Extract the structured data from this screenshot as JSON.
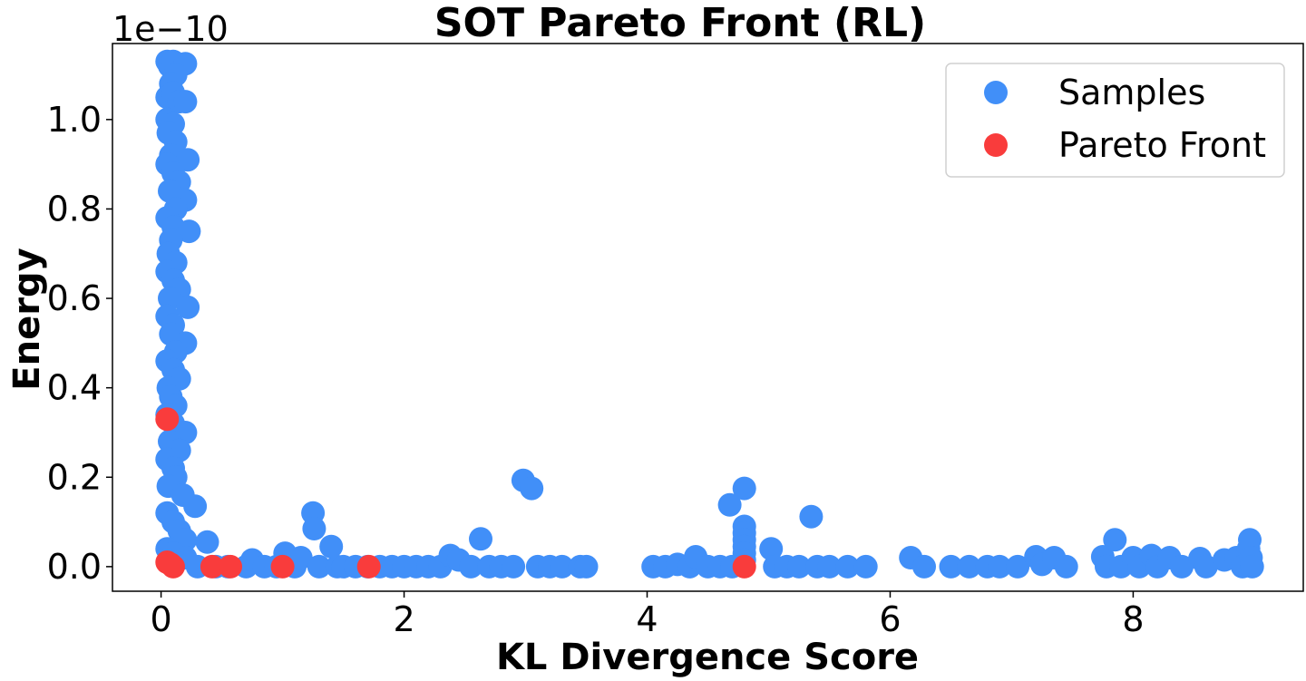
{
  "chart_data": {
    "type": "scatter",
    "title": "SOT Pareto Front (RL)",
    "xlabel": "KL Divergence Score",
    "ylabel": "Energy",
    "y_offset_text": "1e−10",
    "y_scale_note": "y values in units of 1e-10",
    "xlim": [
      -0.4,
      9.4
    ],
    "ylim": [
      -0.055,
      1.17
    ],
    "x_ticks": [
      0,
      2,
      4,
      6,
      8
    ],
    "x_tick_labels": [
      "0",
      "2",
      "4",
      "6",
      "8"
    ],
    "y_ticks": [
      0.0,
      0.2,
      0.4,
      0.6,
      0.8,
      1.0
    ],
    "y_tick_labels": [
      "0.0",
      "0.2",
      "0.4",
      "0.6",
      "0.8",
      "1.0"
    ],
    "grid": false,
    "legend_position": "top-right",
    "legend": [
      "Samples",
      "Pareto Front"
    ],
    "colors": {
      "samples": "#418ff8",
      "pareto": "#f93c3c"
    },
    "series": [
      {
        "name": "Samples",
        "points": [
          [
            0.05,
            1.13
          ],
          [
            0.07,
            1.12
          ],
          [
            0.1,
            1.13
          ],
          [
            0.2,
            1.125
          ],
          [
            0.12,
            1.1
          ],
          [
            0.08,
            1.08
          ],
          [
            0.05,
            1.05
          ],
          [
            0.1,
            1.06
          ],
          [
            0.15,
            1.04
          ],
          [
            0.2,
            1.04
          ],
          [
            0.05,
            1.0
          ],
          [
            0.1,
            0.99
          ],
          [
            0.06,
            0.97
          ],
          [
            0.12,
            0.95
          ],
          [
            0.08,
            0.92
          ],
          [
            0.22,
            0.91
          ],
          [
            0.05,
            0.9
          ],
          [
            0.1,
            0.88
          ],
          [
            0.15,
            0.86
          ],
          [
            0.07,
            0.84
          ],
          [
            0.2,
            0.82
          ],
          [
            0.12,
            0.8
          ],
          [
            0.05,
            0.78
          ],
          [
            0.1,
            0.76
          ],
          [
            0.23,
            0.75
          ],
          [
            0.08,
            0.73
          ],
          [
            0.06,
            0.7
          ],
          [
            0.12,
            0.68
          ],
          [
            0.05,
            0.66
          ],
          [
            0.1,
            0.64
          ],
          [
            0.15,
            0.62
          ],
          [
            0.07,
            0.6
          ],
          [
            0.22,
            0.58
          ],
          [
            0.05,
            0.56
          ],
          [
            0.1,
            0.54
          ],
          [
            0.08,
            0.52
          ],
          [
            0.2,
            0.5
          ],
          [
            0.12,
            0.48
          ],
          [
            0.05,
            0.46
          ],
          [
            0.1,
            0.44
          ],
          [
            0.15,
            0.42
          ],
          [
            0.06,
            0.4
          ],
          [
            0.08,
            0.38
          ],
          [
            0.12,
            0.36
          ],
          [
            0.05,
            0.34
          ],
          [
            0.1,
            0.32
          ],
          [
            0.2,
            0.3
          ],
          [
            0.07,
            0.28
          ],
          [
            0.15,
            0.26
          ],
          [
            0.05,
            0.24
          ],
          [
            0.1,
            0.22
          ],
          [
            0.12,
            0.2
          ],
          [
            0.06,
            0.18
          ],
          [
            0.18,
            0.16
          ],
          [
            0.28,
            0.135
          ],
          [
            0.05,
            0.12
          ],
          [
            0.1,
            0.1
          ],
          [
            0.15,
            0.08
          ],
          [
            0.2,
            0.06
          ],
          [
            0.38,
            0.055
          ],
          [
            0.05,
            0.04
          ],
          [
            0.1,
            0.03
          ],
          [
            0.2,
            0.02
          ],
          [
            0.12,
            0.01
          ],
          [
            0.3,
            0.0
          ],
          [
            0.45,
            0.0
          ],
          [
            0.55,
            0.0
          ],
          [
            0.7,
            0.0
          ],
          [
            0.75,
            0.015
          ],
          [
            0.85,
            0.0
          ],
          [
            0.95,
            0.0
          ],
          [
            1.02,
            0.03
          ],
          [
            1.1,
            0.0
          ],
          [
            1.15,
            0.02
          ],
          [
            1.25,
            0.12
          ],
          [
            1.26,
            0.085
          ],
          [
            1.3,
            0.0
          ],
          [
            1.4,
            0.045
          ],
          [
            1.45,
            0.0
          ],
          [
            1.5,
            0.0
          ],
          [
            1.6,
            0.0
          ],
          [
            1.7,
            0.0
          ],
          [
            1.8,
            0.0
          ],
          [
            1.9,
            0.0
          ],
          [
            2.0,
            0.0
          ],
          [
            2.1,
            0.0
          ],
          [
            2.2,
            0.0
          ],
          [
            2.3,
            0.0
          ],
          [
            2.38,
            0.025
          ],
          [
            2.45,
            0.015
          ],
          [
            2.55,
            0.0
          ],
          [
            2.63,
            0.062
          ],
          [
            2.7,
            0.0
          ],
          [
            2.8,
            0.0
          ],
          [
            2.9,
            0.0
          ],
          [
            2.98,
            0.193
          ],
          [
            3.05,
            0.175
          ],
          [
            3.1,
            0.0
          ],
          [
            3.2,
            0.0
          ],
          [
            3.3,
            0.0
          ],
          [
            3.45,
            0.0
          ],
          [
            3.5,
            0.0
          ],
          [
            4.05,
            0.0
          ],
          [
            4.15,
            0.0
          ],
          [
            4.25,
            0.005
          ],
          [
            4.35,
            0.0
          ],
          [
            4.4,
            0.022
          ],
          [
            4.5,
            0.0
          ],
          [
            4.6,
            0.0
          ],
          [
            4.68,
            0.138
          ],
          [
            4.8,
            0.175
          ],
          [
            4.8,
            0.09
          ],
          [
            4.8,
            0.075
          ],
          [
            4.8,
            0.06
          ],
          [
            4.8,
            0.045
          ],
          [
            4.8,
            0.03
          ],
          [
            4.8,
            0.015
          ],
          [
            4.7,
            0.0
          ],
          [
            5.02,
            0.04
          ],
          [
            5.05,
            0.0
          ],
          [
            5.15,
            0.0
          ],
          [
            5.25,
            0.0
          ],
          [
            5.35,
            0.112
          ],
          [
            5.4,
            0.0
          ],
          [
            5.5,
            0.0
          ],
          [
            5.65,
            0.0
          ],
          [
            5.8,
            0.0
          ],
          [
            6.17,
            0.02
          ],
          [
            6.28,
            0.0
          ],
          [
            6.5,
            0.0
          ],
          [
            6.65,
            0.0
          ],
          [
            6.8,
            0.0
          ],
          [
            6.9,
            0.0
          ],
          [
            7.05,
            0.0
          ],
          [
            7.2,
            0.022
          ],
          [
            7.25,
            0.005
          ],
          [
            7.35,
            0.02
          ],
          [
            7.45,
            0.0
          ],
          [
            7.75,
            0.022
          ],
          [
            7.78,
            0.0
          ],
          [
            7.85,
            0.06
          ],
          [
            7.9,
            0.0
          ],
          [
            8.0,
            0.02
          ],
          [
            8.05,
            0.0
          ],
          [
            8.15,
            0.025
          ],
          [
            8.2,
            0.0
          ],
          [
            8.3,
            0.02
          ],
          [
            8.4,
            0.0
          ],
          [
            8.55,
            0.018
          ],
          [
            8.6,
            0.0
          ],
          [
            8.75,
            0.015
          ],
          [
            8.85,
            0.02
          ],
          [
            8.9,
            0.0
          ],
          [
            8.95,
            0.04
          ],
          [
            8.96,
            0.06
          ],
          [
            8.97,
            0.02
          ],
          [
            8.98,
            0.0
          ]
        ]
      },
      {
        "name": "Pareto Front",
        "points": [
          [
            0.05,
            0.33
          ],
          [
            0.05,
            0.01
          ],
          [
            0.08,
            0.005
          ],
          [
            0.1,
            0.0
          ],
          [
            0.42,
            0.0
          ],
          [
            0.57,
            0.0
          ],
          [
            1.0,
            0.0
          ],
          [
            1.71,
            0.0
          ],
          [
            4.8,
            0.0
          ]
        ]
      }
    ]
  }
}
